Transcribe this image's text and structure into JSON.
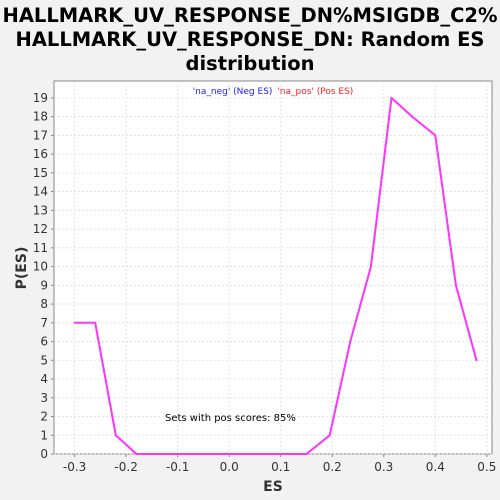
{
  "chart_data": {
    "type": "line",
    "title_lines": [
      "HALLMARK_UV_RESPONSE_DN%MSIGDB_C2%",
      "HALLMARK_UV_RESPONSE_DN: Random ES",
      "distribution"
    ],
    "xlabel": "ES",
    "ylabel": "P(ES)",
    "xlim": [
      -0.34,
      0.51
    ],
    "ylim": [
      0,
      19.9
    ],
    "x_ticks": [
      -0.3,
      -0.2,
      -0.1,
      0.0,
      0.1,
      0.2,
      0.3,
      0.4,
      0.5
    ],
    "x_tick_labels": [
      "-0.3",
      "-0.2",
      "-0.1",
      "0.0",
      "0.1",
      "0.2",
      "0.3",
      "0.4",
      "0.5"
    ],
    "y_ticks": [
      0,
      1,
      2,
      3,
      4,
      5,
      6,
      7,
      8,
      9,
      10,
      11,
      12,
      13,
      14,
      15,
      16,
      17,
      18,
      19
    ],
    "grid": true,
    "legend": {
      "placement": "top-center",
      "items": [
        {
          "label": "'na_neg' (Neg ES)",
          "color": "#2020ff"
        },
        {
          "label": "'na_pos' (Pos ES)",
          "color": "#ff2020"
        }
      ]
    },
    "annotation": "Sets with pos scores: 85%",
    "series": [
      {
        "color": "#ff33ff",
        "x": [
          -0.3,
          -0.26,
          -0.22,
          -0.18,
          -0.14,
          -0.1,
          -0.06,
          -0.02,
          0.02,
          0.06,
          0.1,
          0.15,
          0.195,
          0.235,
          0.275,
          0.315,
          0.355,
          0.4,
          0.44,
          0.48
        ],
        "y": [
          7,
          7,
          1,
          0,
          0,
          0,
          0,
          0,
          0,
          0,
          0,
          0,
          1,
          6,
          10,
          19,
          18,
          17,
          9,
          5
        ]
      }
    ]
  }
}
